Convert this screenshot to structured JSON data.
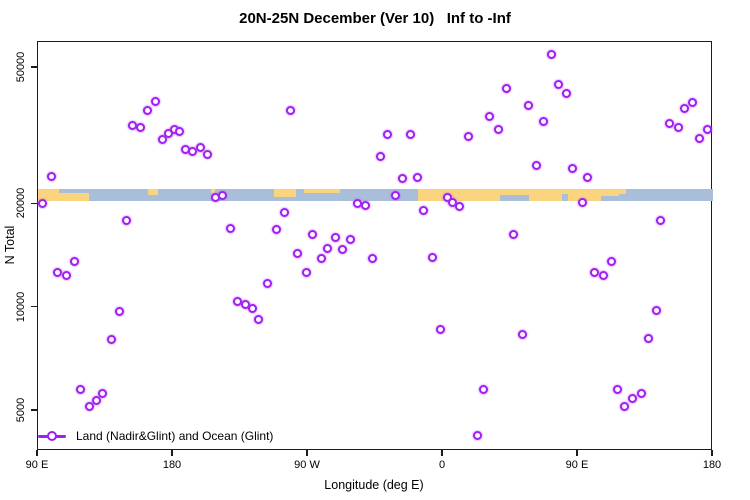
{
  "title": "20N-25N December (Ver 10)   Inf to -Inf",
  "legend": {
    "label": "Land (Nadir&Glint) and Ocean (Glint)"
  },
  "colors": {
    "marker": "#A020F0",
    "ocean": "#A9BFD9",
    "land": "#FBD480",
    "axis": "#1c1c1c"
  },
  "chart_data": {
    "type": "scatter",
    "title": "20N-25N December (Ver 10)   Inf to -Inf",
    "xlabel": "Longitude (deg E)",
    "ylabel": "N Total",
    "x_axis_note": "longitude unwrapped, deg E from 90 to 540 (wraps 90E>180>90W>0>90E>180)",
    "xlim": [
      90,
      540
    ],
    "y_scale": "log",
    "ylim": [
      3900,
      60000
    ],
    "grid": false,
    "legend_position": "bottom-left inside plot",
    "x_ticks": [
      {
        "lon": 90,
        "label": "90 E"
      },
      {
        "lon": 180,
        "label": "180"
      },
      {
        "lon": 270,
        "label": "90 W"
      },
      {
        "lon": 360,
        "label": "0"
      },
      {
        "lon": 450,
        "label": "90 E"
      },
      {
        "lon": 540,
        "label": "180"
      }
    ],
    "y_ticks": [
      {
        "n": 50000,
        "label": "50000"
      },
      {
        "n": 20000,
        "label": "20000"
      },
      {
        "n": 10000,
        "label": "10000"
      },
      {
        "n": 5000,
        "label": "5000"
      }
    ],
    "map_band": {
      "description": "world land/ocean strip for the 20N-25N latitude band drawn across the plot",
      "center_n": 21300,
      "land_segments": [
        {
          "lon0": 90,
          "lon1": 104,
          "anchor": "full",
          "frac": 1.0
        },
        {
          "lon0": 90,
          "lon1": 124,
          "anchor": "bottom",
          "frac": 0.65
        },
        {
          "lon0": 163,
          "lon1": 170,
          "anchor": "top",
          "frac": 0.45
        },
        {
          "lon0": 205,
          "lon1": 208,
          "anchor": "top",
          "frac": 0.3
        },
        {
          "lon0": 247,
          "lon1": 262,
          "anchor": "top",
          "frac": 0.7
        },
        {
          "lon0": 267,
          "lon1": 291,
          "anchor": "top",
          "frac": 0.35
        },
        {
          "lon0": 343,
          "lon1": 477,
          "anchor": "full",
          "frac": 1.0
        },
        {
          "lon0": 477,
          "lon1": 482,
          "anchor": "top",
          "frac": 0.4
        }
      ],
      "ocean_notches": [
        {
          "lon0": 398,
          "lon1": 417,
          "anchor": "bottom",
          "frac": 0.5
        },
        {
          "lon0": 439,
          "lon1": 443,
          "anchor": "bottom",
          "frac": 0.6
        },
        {
          "lon0": 465,
          "lon1": 477,
          "anchor": "bottom",
          "frac": 0.45
        }
      ]
    },
    "series": [
      {
        "name": "Land (Nadir&Glint) and Ocean (Glint)",
        "marker": "open-circle",
        "points": [
          [
            99.3,
            24200
          ],
          [
            92.7,
            20100
          ],
          [
            152.7,
            34000
          ],
          [
            158.0,
            33600
          ],
          [
            163.3,
            37700
          ],
          [
            168.0,
            39800
          ],
          [
            173.3,
            31000
          ],
          [
            177.3,
            32300
          ],
          [
            180.7,
            33000
          ],
          [
            184.0,
            32700
          ],
          [
            188.0,
            29000
          ],
          [
            193.3,
            28600
          ],
          [
            198.0,
            29400
          ],
          [
            202.7,
            28000
          ],
          [
            208.0,
            21000
          ],
          [
            213.3,
            21300
          ],
          [
            258.0,
            37700
          ],
          [
            323.3,
            31900
          ],
          [
            338.0,
            31900
          ],
          [
            377.3,
            31600
          ],
          [
            318.0,
            27600
          ],
          [
            391.3,
            36200
          ],
          [
            333.3,
            23800
          ],
          [
            342.7,
            24000
          ],
          [
            328.0,
            21300
          ],
          [
            303.3,
            20100
          ],
          [
            308.0,
            19900
          ],
          [
            362.7,
            21000
          ],
          [
            366.0,
            20300
          ],
          [
            371.3,
            19700
          ],
          [
            347.3,
            19200
          ],
          [
            254.0,
            19000
          ],
          [
            432.0,
            54600
          ],
          [
            402.0,
            43700
          ],
          [
            437.3,
            44900
          ],
          [
            442.0,
            42000
          ],
          [
            417.3,
            39000
          ],
          [
            427.3,
            35000
          ],
          [
            397.3,
            33100
          ],
          [
            511.3,
            34500
          ],
          [
            516.7,
            33600
          ],
          [
            521.3,
            38200
          ],
          [
            526.0,
            39700
          ],
          [
            531.3,
            31200
          ],
          [
            536.0,
            33000
          ],
          [
            422.0,
            26000
          ],
          [
            446.0,
            25500
          ],
          [
            456.0,
            24000
          ],
          [
            452.7,
            20300
          ],
          [
            149.3,
            18000
          ],
          [
            218.0,
            17000
          ],
          [
            114.0,
            13600
          ],
          [
            103.3,
            12700
          ],
          [
            108.7,
            12400
          ],
          [
            144.0,
            9730
          ],
          [
            222.7,
            10400
          ],
          [
            228.0,
            10200
          ],
          [
            232.7,
            9930
          ],
          [
            237.3,
            9230
          ],
          [
            138.7,
            8060
          ],
          [
            118.0,
            5760
          ],
          [
            124.0,
            5140
          ],
          [
            128.7,
            5350
          ],
          [
            133.3,
            5640
          ],
          [
            248.7,
            16900
          ],
          [
            272.7,
            16400
          ],
          [
            288.0,
            16000
          ],
          [
            298.0,
            15800
          ],
          [
            263.3,
            14400
          ],
          [
            282.7,
            14900
          ],
          [
            292.7,
            14800
          ],
          [
            278.7,
            13900
          ],
          [
            268.7,
            12700
          ],
          [
            243.3,
            11800
          ],
          [
            313.3,
            13900
          ],
          [
            352.7,
            14000
          ],
          [
            358.0,
            8630
          ],
          [
            386.7,
            5790
          ],
          [
            382.7,
            4230
          ],
          [
            505.3,
            18000
          ],
          [
            406.7,
            16400
          ],
          [
            472.0,
            13600
          ],
          [
            461.3,
            12700
          ],
          [
            466.7,
            12400
          ],
          [
            502.0,
            9800
          ],
          [
            412.7,
            8340
          ],
          [
            496.7,
            8120
          ],
          [
            476.0,
            5760
          ],
          [
            481.3,
            5170
          ],
          [
            486.0,
            5420
          ],
          [
            492.0,
            5610
          ]
        ]
      }
    ]
  }
}
